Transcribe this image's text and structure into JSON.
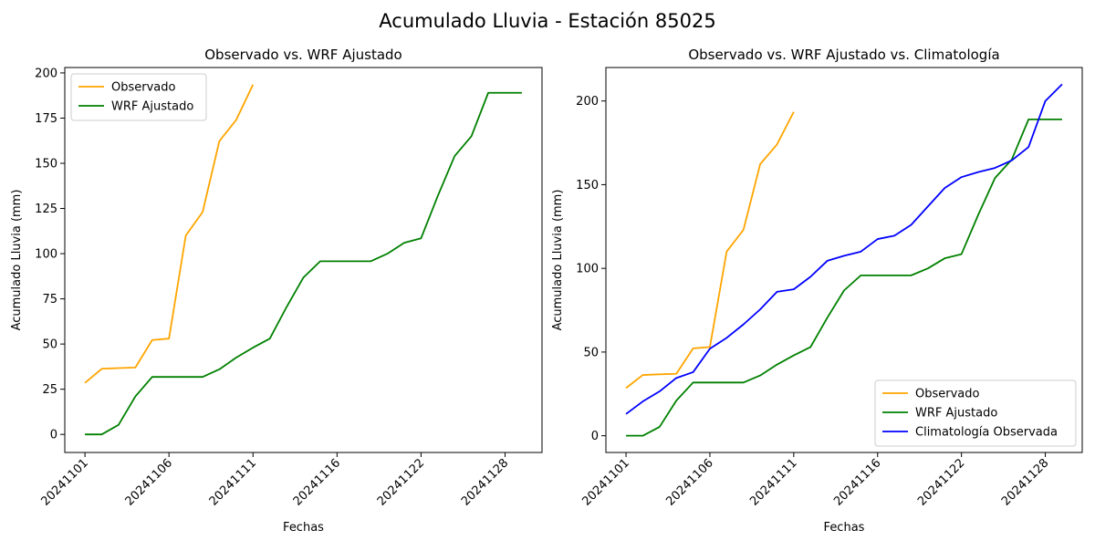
{
  "figure": {
    "suptitle": "Acumulado Lluvia - Estación 85025"
  },
  "chart_data": [
    {
      "type": "line",
      "title": "Observado vs. WRF Ajustado",
      "xlabel": "Fechas",
      "ylabel": "Acumulado Lluvia (mm)",
      "xlim": [
        -1.2,
        27.2
      ],
      "ylim": [
        -10,
        203
      ],
      "yticks": [
        0,
        25,
        50,
        75,
        100,
        125,
        150,
        175,
        200
      ],
      "xticks": [
        0,
        5,
        10,
        15,
        20,
        25
      ],
      "xtick_labels": [
        "20241101",
        "20241106",
        "20241111",
        "20241116",
        "20241122",
        "20241128"
      ],
      "legend": "upper-left",
      "series": [
        {
          "name": "Observado",
          "color": "#ffa500",
          "x": [
            0,
            1,
            2,
            3,
            4,
            5,
            6,
            7,
            8,
            9,
            10
          ],
          "y": [
            28.5,
            36.3,
            36.7,
            37.0,
            52.2,
            53.0,
            110.0,
            123.0,
            162.3,
            174.0,
            193.5
          ]
        },
        {
          "name": "WRF Ajustado",
          "color": "#008000",
          "x": [
            0,
            1,
            2,
            3,
            4,
            5,
            6,
            7,
            8,
            9,
            10,
            11,
            12,
            13,
            14,
            15,
            16,
            17,
            18,
            19,
            20,
            21,
            22,
            23,
            24,
            25,
            26
          ],
          "y": [
            0,
            0,
            5.3,
            21.0,
            31.8,
            31.8,
            31.8,
            31.8,
            36.0,
            42.5,
            48.0,
            53.0,
            70.5,
            86.8,
            95.8,
            95.8,
            95.8,
            95.8,
            100.0,
            106.0,
            108.5,
            132.0,
            154.0,
            165.0,
            189.0,
            189.0,
            189.0
          ]
        }
      ]
    },
    {
      "type": "line",
      "title": "Observado vs. WRF Ajustado vs. Climatología",
      "xlabel": "Fechas",
      "ylabel": "Acumulado Lluvia (mm)",
      "xlim": [
        -1.2,
        27.2
      ],
      "ylim": [
        -10,
        220
      ],
      "yticks": [
        0,
        50,
        100,
        150,
        200
      ],
      "xticks": [
        0,
        5,
        10,
        15,
        20,
        25
      ],
      "xtick_labels": [
        "20241101",
        "20241106",
        "20241111",
        "20241116",
        "20241122",
        "20241128"
      ],
      "legend": "lower-right",
      "series": [
        {
          "name": "Observado",
          "color": "#ffa500",
          "x": [
            0,
            1,
            2,
            3,
            4,
            5,
            6,
            7,
            8,
            9,
            10
          ],
          "y": [
            28.5,
            36.3,
            36.7,
            37.0,
            52.2,
            53.0,
            110.0,
            123.0,
            162.3,
            174.0,
            193.5
          ]
        },
        {
          "name": "WRF Ajustado",
          "color": "#008000",
          "x": [
            0,
            1,
            2,
            3,
            4,
            5,
            6,
            7,
            8,
            9,
            10,
            11,
            12,
            13,
            14,
            15,
            16,
            17,
            18,
            19,
            20,
            21,
            22,
            23,
            24,
            25,
            26
          ],
          "y": [
            0,
            0,
            5.3,
            21.0,
            31.8,
            31.8,
            31.8,
            31.8,
            36.0,
            42.5,
            48.0,
            53.0,
            70.5,
            86.8,
            95.8,
            95.8,
            95.8,
            95.8,
            100.0,
            106.0,
            108.5,
            132.0,
            154.0,
            165.0,
            189.0,
            189.0,
            189.0
          ]
        },
        {
          "name": "Climatología Observada",
          "color": "#0000ff",
          "x": [
            0,
            1,
            2,
            3,
            4,
            5,
            6,
            7,
            8,
            9,
            10,
            11,
            12,
            13,
            14,
            15,
            16,
            17,
            18,
            19,
            20,
            21,
            22,
            23,
            24,
            25,
            26
          ],
          "y": [
            13.0,
            20.5,
            26.5,
            34.5,
            38.0,
            52.0,
            58.5,
            66.5,
            75.5,
            86.0,
            87.5,
            95.0,
            104.5,
            107.5,
            110.0,
            117.5,
            119.5,
            126.0,
            137.0,
            148.0,
            154.5,
            157.5,
            160.0,
            164.5,
            172.5,
            200.0,
            210.0
          ]
        }
      ]
    }
  ]
}
